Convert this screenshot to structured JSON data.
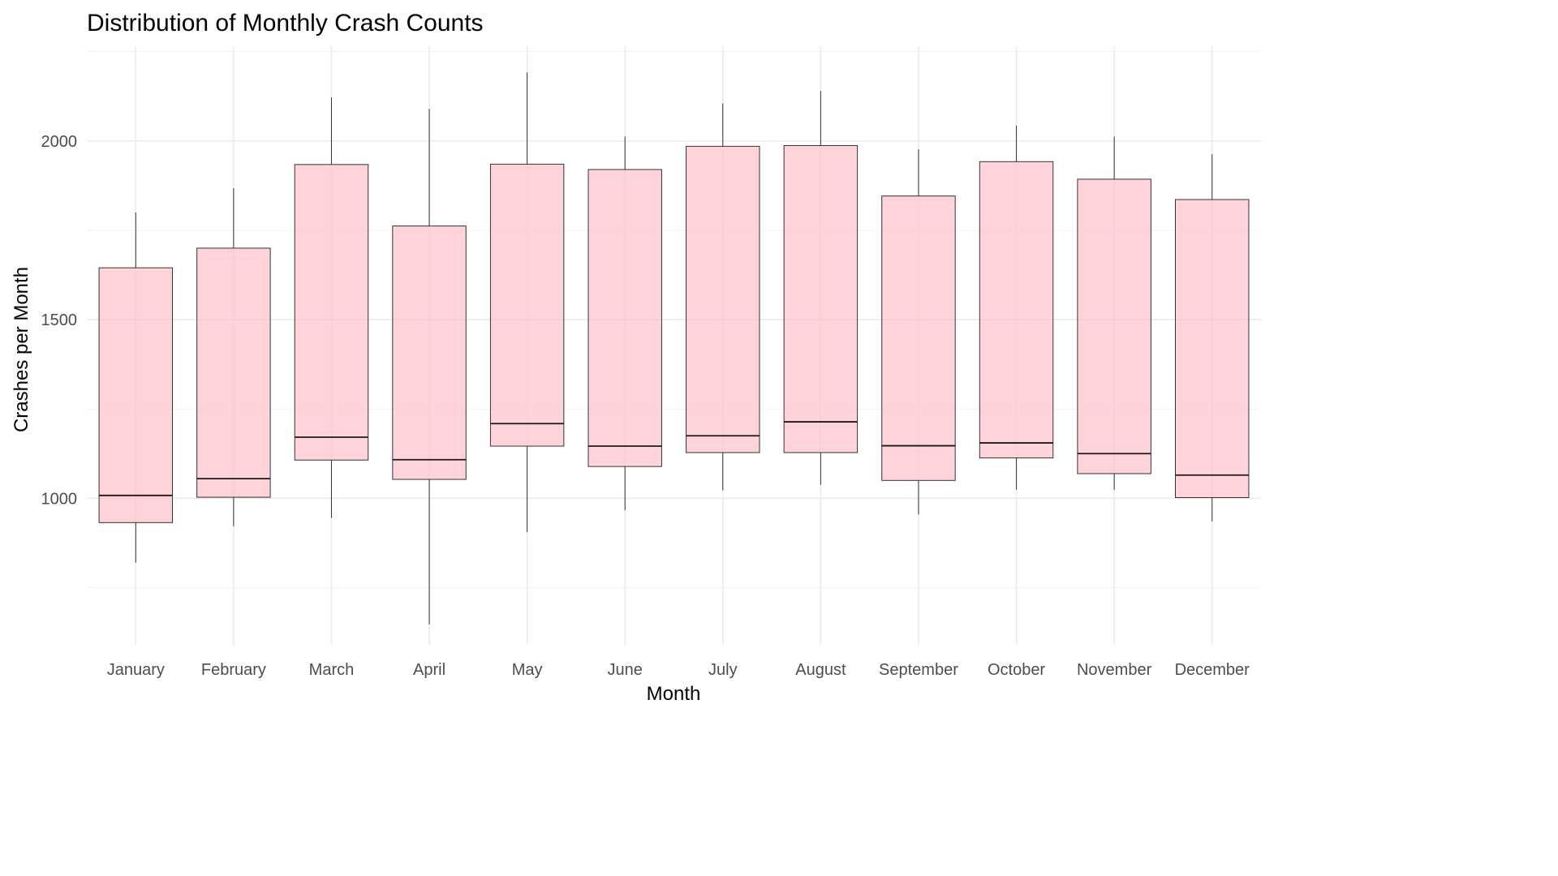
{
  "chart_data": {
    "type": "boxplot",
    "title": "Distribution of Monthly Crash Counts",
    "xlabel": "Month",
    "ylabel": "Crashes per Month",
    "ylim": [
      590,
      2265
    ],
    "y_ticks": [
      1000,
      1500,
      2000
    ],
    "grid": true,
    "box_color": "#ffc0cb",
    "categories": [
      "January",
      "February",
      "March",
      "April",
      "May",
      "June",
      "July",
      "August",
      "September",
      "October",
      "November",
      "December"
    ],
    "boxes": [
      {
        "min": 820,
        "q1": 932,
        "median": 1008,
        "q3": 1645,
        "max": 1800
      },
      {
        "min": 922,
        "q1": 1003,
        "median": 1055,
        "q3": 1700,
        "max": 1868
      },
      {
        "min": 945,
        "q1": 1107,
        "median": 1171,
        "q3": 1934,
        "max": 2122
      },
      {
        "min": 647,
        "q1": 1053,
        "median": 1108,
        "q3": 1762,
        "max": 2090
      },
      {
        "min": 905,
        "q1": 1146,
        "median": 1209,
        "q3": 1935,
        "max": 2192
      },
      {
        "min": 967,
        "q1": 1089,
        "median": 1146,
        "q3": 1920,
        "max": 2012
      },
      {
        "min": 1022,
        "q1": 1128,
        "median": 1175,
        "q3": 1985,
        "max": 2105
      },
      {
        "min": 1038,
        "q1": 1128,
        "median": 1214,
        "q3": 1987,
        "max": 2140
      },
      {
        "min": 955,
        "q1": 1050,
        "median": 1147,
        "q3": 1846,
        "max": 1977
      },
      {
        "min": 1024,
        "q1": 1113,
        "median": 1155,
        "q3": 1942,
        "max": 2043
      },
      {
        "min": 1024,
        "q1": 1069,
        "median": 1125,
        "q3": 1893,
        "max": 2012
      },
      {
        "min": 935,
        "q1": 1002,
        "median": 1065,
        "q3": 1836,
        "max": 1963
      }
    ]
  }
}
